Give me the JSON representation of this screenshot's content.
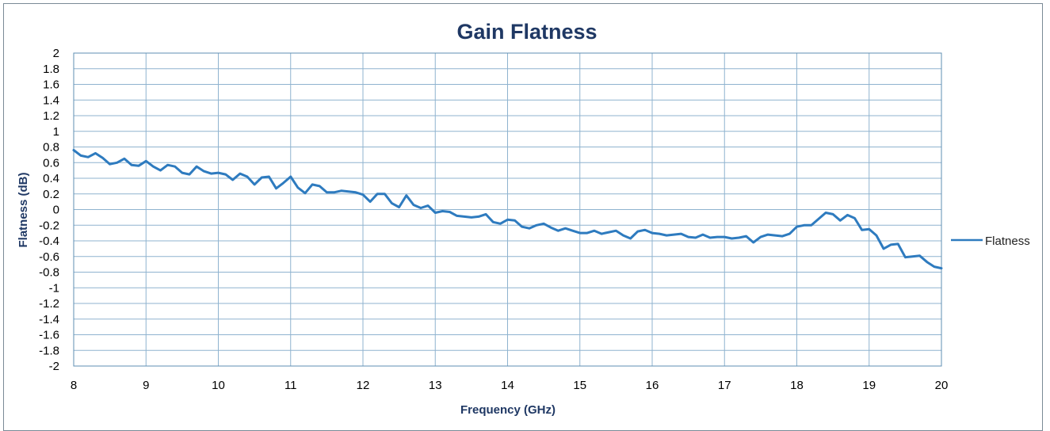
{
  "chart_data": {
    "type": "line",
    "title": "Gain Flatness",
    "xlabel": "Frequency (GHz)",
    "ylabel": "Flatness (dB)",
    "xlim": [
      8,
      20
    ],
    "ylim": [
      -2,
      2
    ],
    "x_ticks": [
      "8",
      "9",
      "10",
      "11",
      "12",
      "13",
      "14",
      "15",
      "16",
      "17",
      "18",
      "19",
      "20"
    ],
    "y_ticks": [
      "2",
      "1.8",
      "1.6",
      "1.4",
      "1.2",
      "1",
      "0.8",
      "0.6",
      "0.4",
      "0.2",
      "0",
      "-0.2",
      "-0.4",
      "-0.6",
      "-0.8",
      "-1",
      "-1.2",
      "-1.4",
      "-1.6",
      "-1.8",
      "-2"
    ],
    "grid": true,
    "legend_position": "right",
    "color": "#2e7bbf",
    "series": [
      {
        "name": "Flatness",
        "x": [
          8.0,
          8.1,
          8.2,
          8.3,
          8.4,
          8.5,
          8.6,
          8.7,
          8.8,
          8.9,
          9.0,
          9.1,
          9.2,
          9.3,
          9.4,
          9.5,
          9.6,
          9.7,
          9.8,
          9.9,
          10.0,
          10.1,
          10.2,
          10.3,
          10.4,
          10.5,
          10.6,
          10.7,
          10.8,
          10.9,
          11.0,
          11.1,
          11.2,
          11.3,
          11.4,
          11.5,
          11.6,
          11.7,
          11.8,
          11.9,
          12.0,
          12.1,
          12.2,
          12.3,
          12.4,
          12.5,
          12.6,
          12.7,
          12.8,
          12.9,
          13.0,
          13.1,
          13.2,
          13.3,
          13.4,
          13.5,
          13.6,
          13.7,
          13.8,
          13.9,
          14.0,
          14.1,
          14.2,
          14.3,
          14.4,
          14.5,
          14.6,
          14.7,
          14.8,
          14.9,
          15.0,
          15.1,
          15.2,
          15.3,
          15.4,
          15.5,
          15.6,
          15.7,
          15.8,
          15.9,
          16.0,
          16.1,
          16.2,
          16.3,
          16.4,
          16.5,
          16.6,
          16.7,
          16.8,
          16.9,
          17.0,
          17.1,
          17.2,
          17.3,
          17.4,
          17.5,
          17.6,
          17.7,
          17.8,
          17.9,
          18.0,
          18.1,
          18.2,
          18.3,
          18.4,
          18.5,
          18.6,
          18.7,
          18.8,
          18.9,
          19.0,
          19.1,
          19.2,
          19.3,
          19.4,
          19.5,
          19.6,
          19.7,
          19.8,
          19.9,
          20.0
        ],
        "y": [
          0.76,
          0.69,
          0.67,
          0.72,
          0.66,
          0.58,
          0.6,
          0.65,
          0.57,
          0.56,
          0.62,
          0.55,
          0.5,
          0.57,
          0.55,
          0.47,
          0.45,
          0.55,
          0.49,
          0.46,
          0.47,
          0.45,
          0.38,
          0.46,
          0.42,
          0.32,
          0.41,
          0.42,
          0.27,
          0.34,
          0.42,
          0.28,
          0.21,
          0.32,
          0.3,
          0.22,
          0.22,
          0.24,
          0.23,
          0.22,
          0.19,
          0.1,
          0.2,
          0.2,
          0.08,
          0.03,
          0.18,
          0.06,
          0.02,
          0.05,
          -0.04,
          -0.02,
          -0.03,
          -0.08,
          -0.09,
          -0.1,
          -0.09,
          -0.06,
          -0.16,
          -0.18,
          -0.13,
          -0.14,
          -0.22,
          -0.24,
          -0.2,
          -0.18,
          -0.23,
          -0.27,
          -0.24,
          -0.27,
          -0.3,
          -0.3,
          -0.27,
          -0.31,
          -0.29,
          -0.27,
          -0.33,
          -0.37,
          -0.28,
          -0.26,
          -0.3,
          -0.31,
          -0.33,
          -0.32,
          -0.31,
          -0.35,
          -0.36,
          -0.32,
          -0.36,
          -0.35,
          -0.35,
          -0.37,
          -0.36,
          -0.34,
          -0.42,
          -0.35,
          -0.32,
          -0.33,
          -0.34,
          -0.31,
          -0.22,
          -0.2,
          -0.2,
          -0.12,
          -0.04,
          -0.06,
          -0.14,
          -0.07,
          -0.11,
          -0.26,
          -0.25,
          -0.33,
          -0.5,
          -0.45,
          -0.44,
          -0.61,
          -0.6,
          -0.59,
          -0.67,
          -0.73,
          -0.75
        ]
      }
    ]
  }
}
